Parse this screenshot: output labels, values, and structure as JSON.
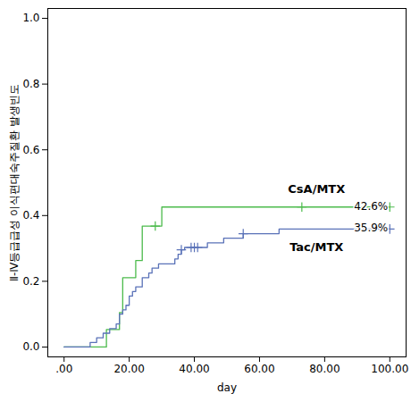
{
  "chart_data": {
    "type": "line",
    "line_style": "step",
    "marker": "plus",
    "x_label": "day",
    "y_label": "Ⅱ-Ⅳ등급급성 이식편대숙주질환 발생빈도",
    "xlim": [
      -5,
      105
    ],
    "ylim": [
      -0.03,
      1.03
    ],
    "xticks": [
      {
        "value": 0,
        "label": ".00"
      },
      {
        "value": 20,
        "label": "20.00"
      },
      {
        "value": 40,
        "label": "40.00"
      },
      {
        "value": 60,
        "label": "60.00"
      },
      {
        "value": 80,
        "label": "80.00"
      },
      {
        "value": 100,
        "label": "100.00"
      }
    ],
    "yticks": [
      {
        "value": 0,
        "label": "0.0"
      },
      0.2,
      0.4,
      0.6,
      0.8,
      {
        "value": 1,
        "label": "1.0"
      }
    ],
    "series": [
      {
        "name": "CsA/MTX",
        "color": "#4cbb4c",
        "x": [
          0,
          13,
          17,
          18,
          22,
          24,
          30,
          100
        ],
        "values": [
          0,
          0.053,
          0.105,
          0.211,
          0.263,
          0.368,
          0.426,
          0.426
        ],
        "censored": [
          [
            28,
            0.368
          ],
          [
            73,
            0.426
          ],
          [
            100,
            0.426
          ]
        ]
      },
      {
        "name": "Tac/MTX",
        "color": "#5a72b8",
        "x": [
          0,
          8,
          10,
          12,
          14,
          16,
          17,
          18,
          19,
          20,
          21,
          22,
          24,
          26,
          27,
          29,
          34,
          35,
          36,
          37,
          44,
          49,
          55,
          66,
          100
        ],
        "values": [
          0,
          0.014,
          0.028,
          0.042,
          0.056,
          0.07,
          0.1,
          0.113,
          0.127,
          0.155,
          0.169,
          0.183,
          0.211,
          0.225,
          0.24,
          0.253,
          0.268,
          0.282,
          0.296,
          0.303,
          0.317,
          0.331,
          0.345,
          0.359,
          0.359
        ],
        "censored": [
          [
            36,
            0.296
          ],
          [
            39,
            0.303
          ],
          [
            40,
            0.303
          ],
          [
            41,
            0.303
          ],
          [
            55,
            0.345
          ],
          [
            100,
            0.359
          ]
        ]
      }
    ],
    "annotations": [
      {
        "text": "42.6%"
      },
      {
        "text": "35.9%"
      }
    ]
  }
}
